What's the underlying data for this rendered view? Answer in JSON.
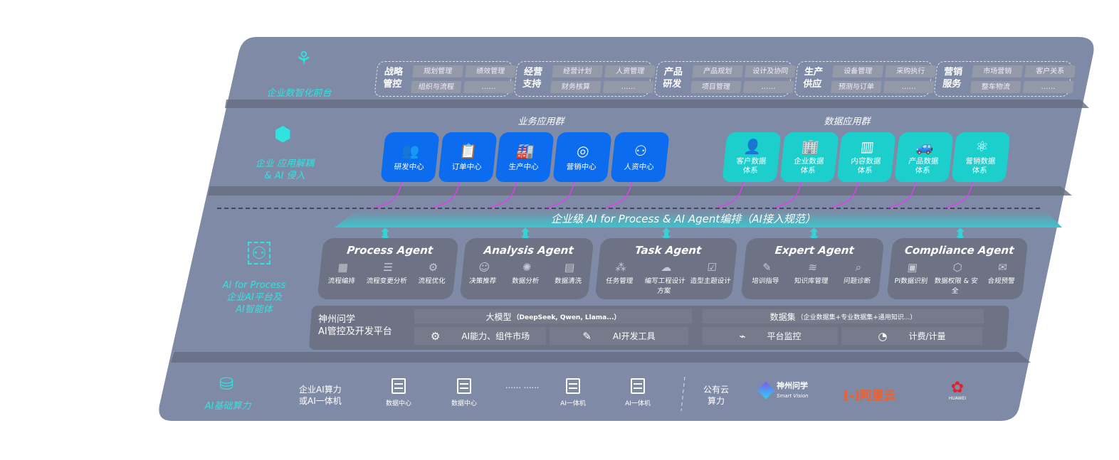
{
  "colors": {
    "panel": "#7f8ba6",
    "blue": "#0b6cf0",
    "teal": "#1ccfcc",
    "cyan_text": "#2fe3e0",
    "arrow": "#e040f0"
  },
  "layers": {
    "front": "企业数智化前台",
    "decouple": [
      "企业 应用解耦",
      "& AI 侵入"
    ],
    "process": [
      "AI for Process",
      "企业AI平台及",
      "AI智能体"
    ],
    "compute": "AI基础算力"
  },
  "front_groups": [
    {
      "title": "战略管控",
      "items": [
        "规划管理",
        "绩效管理",
        "组织与流程",
        "……"
      ]
    },
    {
      "title": "经营支持",
      "items": [
        "经营计划",
        "人资管理",
        "财务核算",
        "……"
      ]
    },
    {
      "title": "产品研发",
      "items": [
        "产品规划",
        "设计及协同",
        "项目管理",
        "……"
      ]
    },
    {
      "title": "生产供应",
      "items": [
        "设备管理",
        "采购执行",
        "预测与订单",
        "……"
      ]
    },
    {
      "title": "营销服务",
      "items": [
        "市场营销",
        "客户关系",
        "整车物流",
        "……"
      ]
    }
  ],
  "business_apps": {
    "title": "业务应用群",
    "items": [
      {
        "label": "研发中心",
        "icon": "users-icon",
        "glyph": "👥"
      },
      {
        "label": "订单中心",
        "icon": "clipboard-icon",
        "glyph": "📋"
      },
      {
        "label": "生产中心",
        "icon": "factory-icon",
        "glyph": "🏭"
      },
      {
        "label": "营销中心",
        "icon": "target-icon",
        "glyph": "◎"
      },
      {
        "label": "人资中心",
        "icon": "person-icon",
        "glyph": "⚇"
      }
    ]
  },
  "data_apps": {
    "title": "数据应用群",
    "items": [
      {
        "label": "客户数据体系",
        "icon": "user-icon",
        "glyph": "👤"
      },
      {
        "label": "企业数据体系",
        "icon": "building-icon",
        "glyph": "🏢"
      },
      {
        "label": "内容数据体系",
        "icon": "books-icon",
        "glyph": "▥"
      },
      {
        "label": "产品数据体系",
        "icon": "car-icon",
        "glyph": "🚙"
      },
      {
        "label": "营销数据体系",
        "icon": "atom-icon",
        "glyph": "⚛"
      }
    ]
  },
  "banner": "企业级 AI for Process & AI Agent编排（AI接入规范）",
  "agents": [
    {
      "name": "Process Agent",
      "items": [
        {
          "label": "流程编排",
          "glyph": "▦",
          "icon": "workflow-icon"
        },
        {
          "label": "流程变更分析",
          "glyph": "☰",
          "icon": "list-icon"
        },
        {
          "label": "流程优化",
          "glyph": "⚙",
          "icon": "optimize-icon"
        }
      ]
    },
    {
      "name": "Analysis Agent",
      "items": [
        {
          "label": "决策推荐",
          "glyph": "☺",
          "icon": "head-icon"
        },
        {
          "label": "数据分析",
          "glyph": "✺",
          "icon": "atom-icon"
        },
        {
          "label": "数据清洗",
          "glyph": "▤",
          "icon": "clean-icon"
        }
      ]
    },
    {
      "name": "Task Agent",
      "items": [
        {
          "label": "任务管理",
          "glyph": "⁂",
          "icon": "task-icon"
        },
        {
          "label": "编写工程设计方案",
          "glyph": "☁",
          "icon": "cloud-icon"
        },
        {
          "label": "造型主题设计",
          "glyph": "☑",
          "icon": "checklist-icon"
        }
      ]
    },
    {
      "name": "Expert Agent",
      "items": [
        {
          "label": "培训指导",
          "glyph": "✎",
          "icon": "training-icon"
        },
        {
          "label": "知识库管理",
          "glyph": "≋",
          "icon": "layers-icon"
        },
        {
          "label": "问题诊断",
          "glyph": "⌕",
          "icon": "diagnosis-icon"
        }
      ]
    },
    {
      "name": "Compliance Agent",
      "items": [
        {
          "label": "PI数据识别",
          "glyph": "▣",
          "icon": "id-icon"
        },
        {
          "label": "数据权限 & 安全",
          "glyph": "⬡",
          "icon": "shield-icon"
        },
        {
          "label": "合规预警",
          "glyph": "✉",
          "icon": "alert-icon"
        }
      ]
    }
  ],
  "platform": {
    "title": [
      "神州问学",
      "AI管控及开发平台"
    ],
    "model_header": "大模型",
    "model_note": "（DeepSeek, Qwen, Llama...）",
    "dataset_header": "数据集",
    "dataset_note": "（企业数据集+专业数据集+通用知识...）",
    "items": [
      {
        "label": "AI能力、组件市场",
        "glyph": "⚙"
      },
      {
        "label": "AI开发工具",
        "glyph": "✎"
      },
      {
        "label": "平台监控",
        "glyph": "⌁"
      },
      {
        "label": "计费/计量",
        "glyph": "◔"
      }
    ]
  },
  "compute": {
    "private_label": [
      "企业AI算力",
      "或AI一体机"
    ],
    "servers": [
      "数据中心",
      "数据中心",
      "AI一体机",
      "AI一体机"
    ],
    "ellipsis": "…… ……",
    "public_label": [
      "公有云",
      "算力"
    ],
    "logos": {
      "smartvision_cn": "神州问学",
      "smartvision_en": "Smart Vision",
      "aliyun": "阿里云",
      "huawei": "HUAWEI"
    }
  }
}
